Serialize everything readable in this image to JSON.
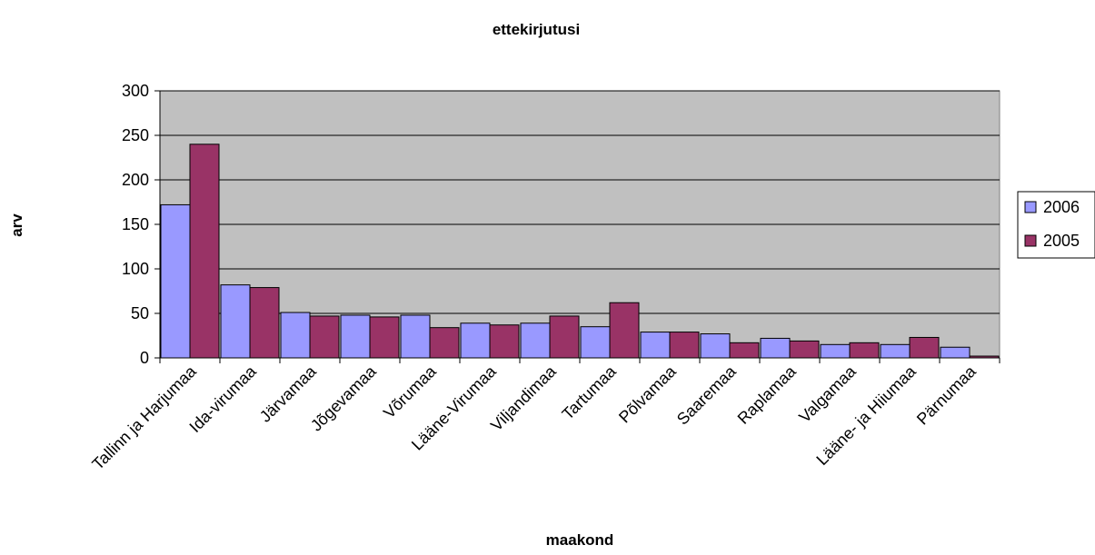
{
  "chart_data": {
    "type": "bar",
    "title": "ettekirjutusi",
    "xlabel": "maakond",
    "ylabel": "arv",
    "ylim": [
      0,
      300
    ],
    "yticks": [
      0,
      50,
      100,
      150,
      200,
      250,
      300
    ],
    "grid": true,
    "legend_position": "right",
    "categories": [
      "Tallinn ja Harjumaa",
      "Ida-virumaa",
      "Järvamaa",
      "Jõgevamaa",
      "Võrumaa",
      "Lääne-Virumaa",
      "Viljandimaa",
      "Tartumaa",
      "Põlvamaa",
      "Saaremaa",
      "Raplamaa",
      "Valgamaa",
      "Lääne- ja Hiiumaa",
      "Pärnumaa"
    ],
    "series": [
      {
        "name": "2006",
        "color": "#9999ff",
        "values": [
          172,
          82,
          51,
          48,
          48,
          39,
          39,
          35,
          29,
          27,
          22,
          15,
          15,
          12
        ]
      },
      {
        "name": "2005",
        "color": "#993366",
        "values": [
          240,
          79,
          47,
          46,
          34,
          37,
          47,
          62,
          29,
          17,
          19,
          17,
          23,
          2
        ]
      }
    ]
  },
  "colors": {
    "plot_bg": "#c0c0c0",
    "grid": "#000000"
  }
}
